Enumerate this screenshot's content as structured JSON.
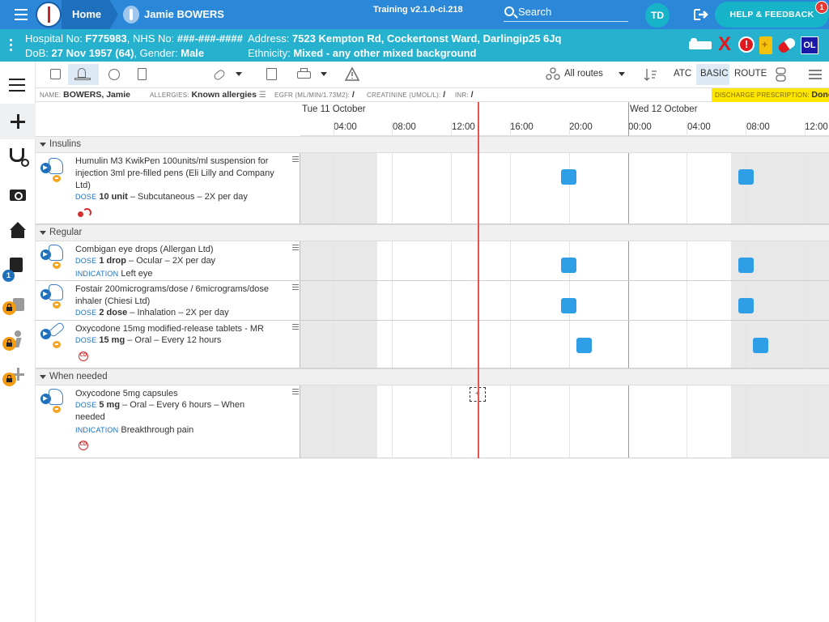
{
  "topbar": {
    "home_label": "Home",
    "patient_name": "Jamie BOWERS",
    "version": "Training v2.1.0-ci.218",
    "search_label": "Search",
    "user_initials": "TD",
    "help_label": "HELP & FEEDBACK",
    "help_badge": "1",
    "accent_color": "#2b88d8"
  },
  "banner": {
    "hospital_label": "Hospital No: ",
    "hospital_no": "F775983",
    "nhs_label": ", NHS No: ",
    "nhs_no": "###-###-####",
    "dob_label": "DoB: ",
    "dob": "27 Nov 1957 (64)",
    "gender_label": ", Gender: ",
    "gender": "Male",
    "address_label": "Address: ",
    "address": "7523 Kempton Rd, Cockertonst Ward, Darlingip25 6Jq",
    "ethnicity_label": "Ethnicity: ",
    "ethnicity": "Mixed - any other mixed background",
    "alert_text": "!",
    "x_text": "X",
    "ol_badge": "OL",
    "color": "#26b2cf"
  },
  "rail": {
    "notes_badge": "1",
    "icons": [
      "list-icon",
      "plus-icon",
      "stethoscope-icon",
      "camera-icon",
      "house-icon",
      "notes-icon",
      "locked-clipboard-icon",
      "locked-walking-icon",
      "locked-plus-icon"
    ]
  },
  "toolbar": {
    "routes_label": "All routes",
    "atc_label": "ATC",
    "basic_label": "BASIC",
    "route_label": "ROUTE"
  },
  "infobar": {
    "name_label": "NAME:",
    "name_value": "BOWERS, Jamie",
    "allergies_label": "ALLERGIES:",
    "allergies_value": "Known allergies",
    "egfr_label": "EGFR (ML/MIN/1.73M2):",
    "egfr_value": "/",
    "creatinine_label": "CREATININE (UMOL/L):",
    "creatinine_value": "/",
    "inr_label": "INR:",
    "inr_value": "/",
    "discharge_label": "DISCHARGE PRESCRIPTION:",
    "discharge_value": "Done"
  },
  "timeline": {
    "days": [
      "Tue 11 October",
      "Wed 12 October"
    ],
    "hours": [
      "04:00",
      "08:00",
      "12:00",
      "16:00",
      "20:00",
      "00:00",
      "04:00",
      "08:00",
      "12:00"
    ],
    "add_symbol": "+"
  },
  "sections": [
    {
      "title": "Insulins",
      "meds": [
        {
          "name": "Humulin M3 KwikPen 100units/ml suspension for injection 3ml pre-filled pens (Eli Lilly and Company Ltd)",
          "dose_label": "DOSE",
          "dose": "10 unit",
          "route": " – Subcutaneous – 2X per day"
        }
      ]
    },
    {
      "title": "Regular",
      "meds": [
        {
          "name": "Combigan eye drops (Allergan Ltd)",
          "dose_label": "DOSE",
          "dose": "1 drop",
          "route": " – Ocular – 2X per day",
          "indication_label": "INDICATION",
          "indication": "Left eye"
        },
        {
          "name": "Fostair 200micrograms/dose / 6micrograms/dose inhaler (Chiesi Ltd)",
          "dose_label": "DOSE",
          "dose": "2 dose",
          "route": " – Inhalation – 2X per day"
        },
        {
          "name": "Oxycodone 15mg modified-release tablets - MR",
          "dose_label": "DOSE",
          "dose": "15 mg",
          "route": " – Oral – Every 12 hours",
          "cd_label": "CD"
        }
      ]
    },
    {
      "title": "When needed",
      "meds": [
        {
          "name": "Oxycodone 5mg capsules",
          "dose_label": "DOSE",
          "dose": "5 mg",
          "route": " – Oral – Every 6 hours – When",
          "route_cont": "needed",
          "indication_label": "INDICATION",
          "indication": "Breakthrough pain",
          "cd_label": "CD"
        }
      ]
    }
  ]
}
